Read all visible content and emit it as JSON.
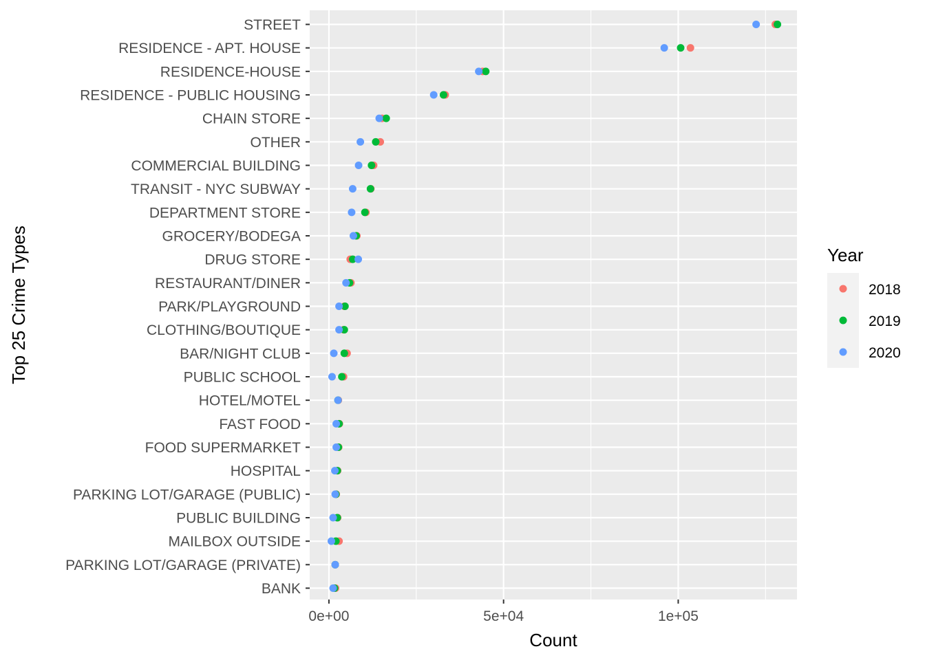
{
  "chart_data": {
    "type": "scatter",
    "xlabel": "Count",
    "ylabel": "Top 25 Crime Types",
    "xlim": [
      -5500,
      134000
    ],
    "x_ticks": [
      {
        "value": 0,
        "label": "0e+00"
      },
      {
        "value": 50000,
        "label": "5e+04"
      },
      {
        "value": 100000,
        "label": "1e+05"
      }
    ],
    "x_minor_ticks": [
      25000,
      75000,
      125000
    ],
    "grid": true,
    "legend": {
      "title": "Year",
      "position": "right",
      "entries": [
        "2018",
        "2019",
        "2020"
      ]
    },
    "categories": [
      "STREET",
      "RESIDENCE - APT. HOUSE",
      "RESIDENCE-HOUSE",
      "RESIDENCE - PUBLIC HOUSING",
      "CHAIN STORE",
      "OTHER",
      "COMMERCIAL BUILDING",
      "TRANSIT - NYC SUBWAY",
      "DEPARTMENT STORE",
      "GROCERY/BODEGA",
      "DRUG STORE",
      "RESTAURANT/DINER",
      "PARK/PLAYGROUND",
      "CLOTHING/BOUTIQUE",
      "BAR/NIGHT CLUB",
      "PUBLIC SCHOOL",
      "HOTEL/MOTEL",
      "FAST FOOD",
      "FOOD SUPERMARKET",
      "HOSPITAL",
      "PARKING LOT/GARAGE (PUBLIC)",
      "PUBLIC BUILDING",
      "MAILBOX OUTSIDE",
      "PARKING LOT/GARAGE (PRIVATE)",
      "BANK"
    ],
    "series": [
      {
        "name": "2018",
        "color": "#F8766D",
        "values": [
          127800,
          103500,
          44000,
          33300,
          15200,
          14700,
          12800,
          12000,
          10600,
          8000,
          6100,
          6300,
          4400,
          4200,
          5200,
          4200,
          2700,
          3000,
          2800,
          2500,
          2100,
          2500,
          2900,
          1800,
          1900
        ]
      },
      {
        "name": "2019",
        "color": "#00BA38",
        "values": [
          128400,
          100700,
          44900,
          32800,
          16400,
          13400,
          12200,
          11900,
          10300,
          7800,
          6800,
          5900,
          4600,
          4400,
          4400,
          3700,
          2600,
          2900,
          2700,
          2400,
          2000,
          2400,
          2000,
          1800,
          1600
        ]
      },
      {
        "name": "2020",
        "color": "#619CFF",
        "values": [
          122300,
          96000,
          42900,
          30000,
          14400,
          9000,
          8500,
          6800,
          6500,
          7000,
          8400,
          4900,
          2900,
          2900,
          1400,
          900,
          2600,
          2100,
          2100,
          1700,
          1800,
          1200,
          700,
          1800,
          1200
        ]
      }
    ]
  }
}
